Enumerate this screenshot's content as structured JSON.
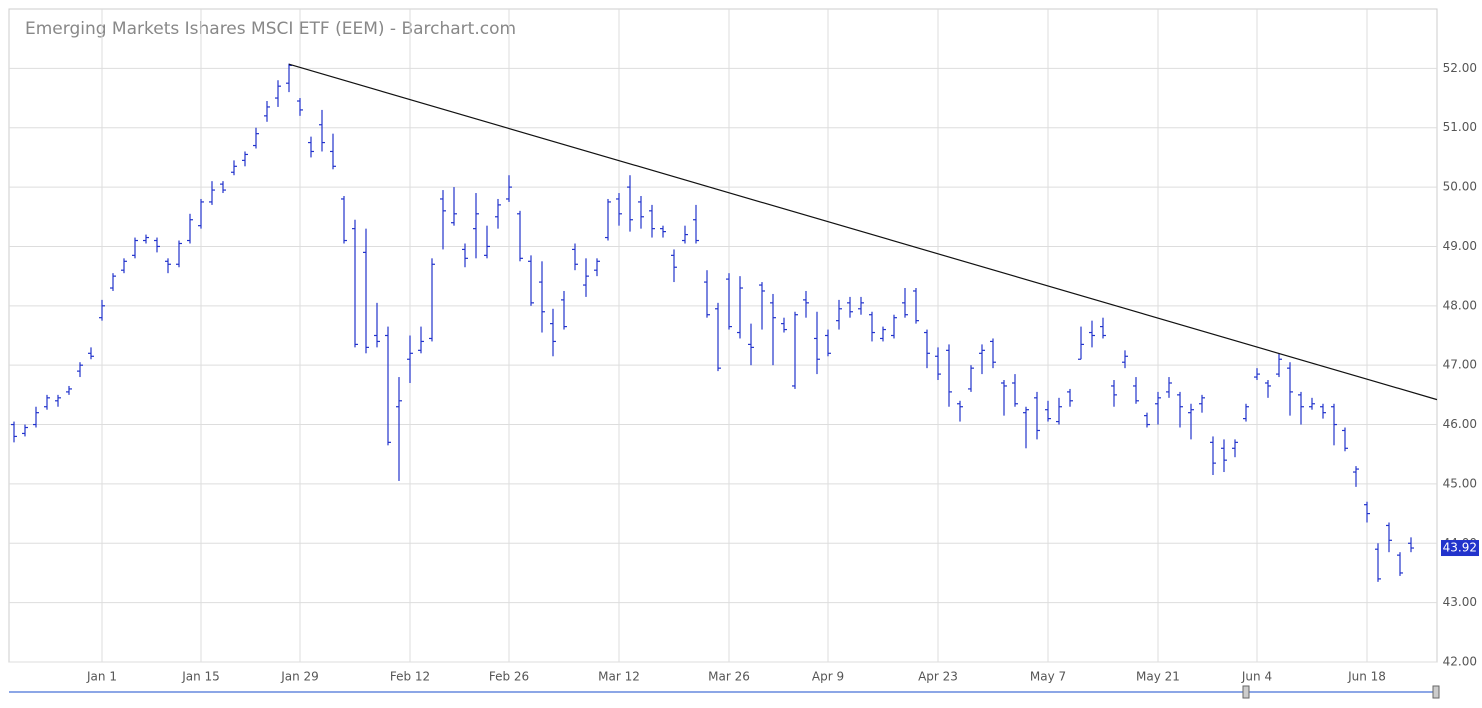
{
  "chart_data": {
    "type": "ohlc",
    "title": "Emerging Markets Ishares MSCI ETF (EEM) - Barchart.com",
    "categories": [
      null,
      null,
      null,
      null,
      null,
      null,
      null,
      null,
      "Jan 1",
      null,
      null,
      null,
      null,
      null,
      null,
      null,
      null,
      "Jan 15",
      null,
      null,
      null,
      null,
      null,
      null,
      null,
      null,
      "Jan 29",
      null,
      null,
      null,
      null,
      null,
      null,
      null,
      null,
      null,
      "Feb 12",
      null,
      null,
      null,
      null,
      null,
      null,
      null,
      null,
      "Feb 26",
      null,
      null,
      null,
      null,
      null,
      null,
      null,
      null,
      null,
      "Mar 12",
      null,
      null,
      null,
      null,
      null,
      null,
      null,
      null,
      null,
      "Mar 26",
      null,
      null,
      null,
      null,
      null,
      null,
      null,
      null,
      "Apr 9",
      null,
      null,
      null,
      null,
      null,
      null,
      null,
      null,
      null,
      "Apr 23",
      null,
      null,
      null,
      null,
      null,
      null,
      null,
      null,
      null,
      "May 7",
      null,
      null,
      null,
      null,
      null,
      null,
      null,
      null,
      null,
      "May 21",
      null,
      null,
      null,
      null,
      null,
      null,
      null,
      null,
      "Jun 4",
      null,
      null,
      null,
      null,
      null,
      null,
      null,
      null,
      null,
      "Jun 18",
      null,
      null,
      null,
      null
    ],
    "series": [
      {
        "color": "#2233cc",
        "open": [
          46.0,
          45.85,
          46.0,
          46.3,
          46.4,
          46.55,
          46.9,
          47.2,
          47.8,
          48.3,
          48.6,
          48.85,
          49.1,
          49.1,
          48.75,
          48.7,
          49.1,
          49.35,
          49.75,
          50.05,
          50.25,
          50.45,
          50.7,
          51.2,
          51.5,
          51.75,
          51.45,
          50.75,
          51.05,
          50.6,
          49.8,
          49.3,
          48.9,
          47.5,
          47.5,
          46.3,
          47.1,
          47.25,
          47.45,
          49.8,
          49.4,
          48.95,
          49.3,
          48.85,
          49.5,
          49.8,
          49.55,
          48.75,
          48.4,
          47.7,
          48.1,
          48.95,
          48.35,
          48.6,
          49.15,
          49.8,
          50.0,
          49.75,
          49.6,
          49.3,
          48.85,
          49.1,
          49.45,
          48.4,
          47.95,
          48.45,
          47.55,
          47.35,
          48.35,
          48.05,
          47.7,
          46.65,
          48.1,
          47.45,
          47.5,
          47.75,
          48.05,
          47.95,
          47.85,
          47.45,
          47.5,
          48.05,
          48.25,
          47.55,
          47.15,
          47.25,
          46.35,
          46.6,
          47.2,
          47.4,
          46.7,
          46.7,
          46.2,
          46.45,
          46.25,
          46.05,
          46.55,
          47.1,
          47.55,
          47.65,
          46.65,
          47.05,
          46.65,
          46.15,
          46.35,
          46.55,
          46.5,
          46.2,
          46.35,
          45.7,
          45.6,
          45.6,
          46.1,
          46.8,
          46.7,
          46.85,
          46.95,
          46.5,
          46.3,
          46.3,
          46.3,
          45.9,
          45.2,
          44.65,
          43.9,
          44.3,
          43.8,
          44.0
        ],
        "high": [
          46.05,
          46.0,
          46.3,
          46.5,
          46.5,
          46.65,
          47.05,
          47.3,
          48.1,
          48.55,
          48.8,
          49.15,
          49.2,
          49.15,
          48.8,
          49.1,
          49.55,
          49.8,
          50.1,
          50.1,
          50.45,
          50.6,
          51.0,
          51.45,
          51.8,
          52.08,
          51.5,
          50.85,
          51.3,
          50.9,
          49.85,
          49.45,
          49.3,
          48.05,
          47.65,
          46.8,
          47.5,
          47.65,
          48.8,
          49.95,
          50.0,
          49.05,
          49.9,
          49.35,
          49.8,
          50.2,
          49.6,
          48.85,
          48.75,
          47.95,
          48.25,
          49.05,
          48.8,
          48.8,
          49.8,
          49.9,
          50.2,
          49.85,
          49.7,
          49.35,
          48.95,
          49.35,
          49.7,
          48.6,
          48.05,
          48.55,
          48.5,
          47.7,
          48.4,
          48.2,
          47.8,
          47.9,
          48.25,
          47.9,
          47.6,
          48.1,
          48.15,
          48.15,
          47.9,
          47.65,
          47.85,
          48.3,
          48.3,
          47.6,
          47.3,
          47.35,
          46.4,
          47.0,
          47.35,
          47.45,
          46.75,
          46.85,
          46.3,
          46.55,
          46.4,
          46.45,
          46.6,
          47.65,
          47.75,
          47.8,
          46.75,
          47.25,
          46.8,
          46.2,
          46.55,
          46.8,
          46.55,
          46.35,
          46.5,
          45.8,
          45.75,
          45.75,
          46.35,
          46.95,
          46.75,
          47.2,
          47.05,
          46.55,
          46.45,
          46.35,
          46.35,
          45.95,
          45.3,
          44.7,
          44.0,
          44.35,
          43.85,
          44.1
        ],
        "low": [
          45.7,
          45.8,
          45.95,
          46.25,
          46.3,
          46.5,
          46.8,
          47.1,
          47.75,
          48.25,
          48.55,
          48.8,
          49.05,
          48.9,
          48.55,
          48.65,
          49.05,
          49.3,
          49.7,
          49.9,
          50.2,
          50.35,
          50.65,
          51.1,
          51.35,
          51.6,
          51.2,
          50.5,
          50.6,
          50.3,
          49.05,
          47.3,
          47.2,
          47.3,
          45.65,
          45.05,
          46.7,
          47.2,
          47.4,
          48.95,
          49.35,
          48.65,
          48.8,
          48.8,
          49.3,
          49.75,
          48.75,
          48.0,
          47.55,
          47.15,
          47.6,
          48.6,
          48.15,
          48.5,
          49.1,
          49.35,
          49.25,
          49.3,
          49.15,
          49.15,
          48.4,
          49.05,
          49.05,
          47.8,
          46.9,
          47.6,
          47.45,
          47.0,
          47.6,
          47.0,
          47.55,
          46.6,
          47.8,
          46.85,
          47.15,
          47.6,
          47.8,
          47.85,
          47.4,
          47.4,
          47.45,
          47.8,
          47.7,
          46.95,
          46.75,
          46.3,
          46.05,
          46.55,
          46.85,
          46.95,
          46.15,
          46.3,
          45.6,
          45.75,
          46.05,
          46.0,
          46.3,
          47.1,
          47.3,
          47.45,
          46.3,
          46.95,
          46.35,
          45.95,
          46.0,
          46.45,
          45.95,
          45.75,
          46.2,
          45.15,
          45.2,
          45.45,
          46.05,
          46.75,
          46.45,
          46.8,
          46.15,
          46.0,
          46.25,
          46.1,
          45.65,
          45.55,
          44.95,
          44.35,
          43.35,
          43.85,
          43.45,
          43.85
        ],
        "close": [
          45.8,
          45.95,
          46.2,
          46.45,
          46.45,
          46.6,
          47.0,
          47.15,
          48.0,
          48.5,
          48.75,
          49.1,
          49.15,
          49.0,
          48.7,
          49.05,
          49.45,
          49.75,
          49.95,
          49.95,
          50.35,
          50.55,
          50.9,
          51.35,
          51.7,
          52.05,
          51.3,
          50.6,
          50.75,
          50.35,
          49.1,
          47.35,
          47.3,
          47.4,
          45.7,
          46.4,
          47.2,
          47.4,
          48.7,
          49.6,
          49.55,
          48.8,
          49.55,
          49.0,
          49.7,
          50.0,
          48.8,
          48.05,
          47.9,
          47.4,
          47.65,
          48.7,
          48.5,
          48.75,
          49.75,
          49.55,
          49.45,
          49.5,
          49.3,
          49.25,
          48.65,
          49.2,
          49.1,
          47.85,
          46.95,
          47.65,
          48.3,
          47.3,
          48.25,
          47.8,
          47.6,
          47.85,
          48.05,
          47.1,
          47.2,
          47.95,
          47.9,
          48.05,
          47.55,
          47.6,
          47.8,
          47.85,
          47.75,
          47.2,
          46.85,
          46.55,
          46.3,
          46.95,
          47.25,
          47.05,
          46.65,
          46.35,
          46.25,
          45.9,
          46.1,
          46.3,
          46.4,
          47.35,
          47.5,
          47.5,
          46.5,
          47.15,
          46.4,
          46.0,
          46.45,
          46.7,
          46.3,
          46.25,
          46.45,
          45.35,
          45.4,
          45.7,
          46.3,
          46.85,
          46.65,
          47.1,
          46.55,
          46.3,
          46.35,
          46.2,
          46.0,
          45.6,
          45.25,
          44.5,
          43.4,
          44.05,
          43.5,
          43.92
        ]
      }
    ],
    "trendline": {
      "values": [
        52.07,
        46.42
      ],
      "color": "#111111"
    },
    "last_price": 43.92,
    "ylim": [
      42,
      53
    ],
    "yticks": [
      {
        "value": 42,
        "label": "42.00"
      },
      {
        "value": 43,
        "label": "43.00"
      },
      {
        "value": 44,
        "label": "44.00"
      },
      {
        "value": 45,
        "label": "45.00"
      },
      {
        "value": 46,
        "label": "46.00"
      },
      {
        "value": 47,
        "label": "47.00"
      },
      {
        "value": 48,
        "label": "48.00"
      },
      {
        "value": 49,
        "label": "49.00"
      },
      {
        "value": 50,
        "label": "50.00"
      },
      {
        "value": 51,
        "label": "51.00"
      },
      {
        "value": 52,
        "label": "52.00"
      }
    ],
    "grid": true
  }
}
